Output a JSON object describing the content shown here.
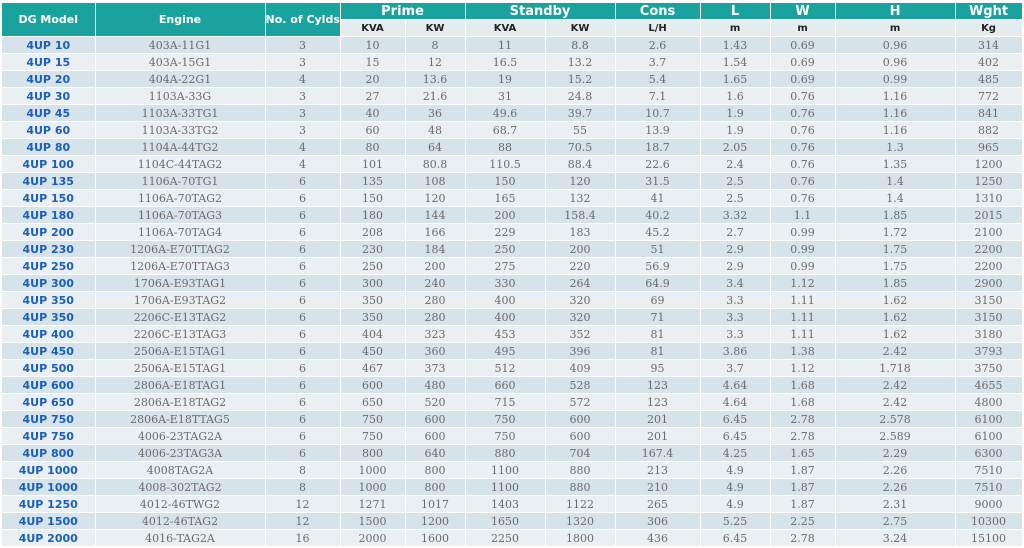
{
  "header": {
    "columns": [
      "DG Model",
      "Engine",
      "No. of Cylds",
      "Prime",
      "Standby",
      "Cons",
      "L",
      "W",
      "H",
      "Wght"
    ],
    "units": [
      "KVA",
      "KW",
      "KVA",
      "KW",
      "L/H",
      "m",
      "m",
      "m",
      "Kg"
    ]
  },
  "table": {
    "rows": [
      [
        "4UP 10",
        "403A-11G1",
        "3",
        "10",
        "8",
        "11",
        "8.8",
        "2.6",
        "1.43",
        "0.69",
        "0.96",
        "314"
      ],
      [
        "4UP 15",
        "403A-15G1",
        "3",
        "15",
        "12",
        "16.5",
        "13.2",
        "3.7",
        "1.54",
        "0.69",
        "0.96",
        "402"
      ],
      [
        "4UP 20",
        "404A-22G1",
        "4",
        "20",
        "13.6",
        "19",
        "15.2",
        "5.4",
        "1.65",
        "0.69",
        "0.99",
        "485"
      ],
      [
        "4UP 30",
        "1103A-33G",
        "3",
        "27",
        "21.6",
        "31",
        "24.8",
        "7.1",
        "1.6",
        "0.76",
        "1.16",
        "772"
      ],
      [
        "4UP 45",
        "1103A-33TG1",
        "3",
        "40",
        "36",
        "49.6",
        "39.7",
        "10.7",
        "1.9",
        "0.76",
        "1.16",
        "841"
      ],
      [
        "4UP 60",
        "1103A-33TG2",
        "3",
        "60",
        "48",
        "68.7",
        "55",
        "13.9",
        "1.9",
        "0.76",
        "1.16",
        "882"
      ],
      [
        "4UP 80",
        "1104A-44TG2",
        "4",
        "80",
        "64",
        "88",
        "70.5",
        "18.7",
        "2.05",
        "0.76",
        "1.3",
        "965"
      ],
      [
        "4UP 100",
        "1104C-44TAG2",
        "4",
        "101",
        "80.8",
        "110.5",
        "88.4",
        "22.6",
        "2.4",
        "0.76",
        "1.35",
        "1200"
      ],
      [
        "4UP 135",
        "1106A-70TG1",
        "6",
        "135",
        "108",
        "150",
        "120",
        "31.5",
        "2.5",
        "0.76",
        "1.4",
        "1250"
      ],
      [
        "4UP 150",
        "1106A-70TAG2",
        "6",
        "150",
        "120",
        "165",
        "132",
        "41",
        "2.5",
        "0.76",
        "1.4",
        "1310"
      ],
      [
        "4UP 180",
        "1106A-70TAG3",
        "6",
        "180",
        "144",
        "200",
        "158.4",
        "40.2",
        "3.32",
        "1.1",
        "1.85",
        "2015"
      ],
      [
        "4UP 200",
        "1106A-70TAG4",
        "6",
        "208",
        "166",
        "229",
        "183",
        "45.2",
        "2.7",
        "0.99",
        "1.72",
        "2100"
      ],
      [
        "4UP 230",
        "1206A-E70TTAG2",
        "6",
        "230",
        "184",
        "250",
        "200",
        "51",
        "2.9",
        "0.99",
        "1.75",
        "2200"
      ],
      [
        "4UP 250",
        "1206A-E70TTAG3",
        "6",
        "250",
        "200",
        "275",
        "220",
        "56.9",
        "2.9",
        "0.99",
        "1.75",
        "2200"
      ],
      [
        "4UP 300",
        "1706A-E93TAG1",
        "6",
        "300",
        "240",
        "330",
        "264",
        "64.9",
        "3.4",
        "1.12",
        "1.85",
        "2900"
      ],
      [
        "4UP 350",
        "1706A-E93TAG2",
        "6",
        "350",
        "280",
        "400",
        "320",
        "69",
        "3.3",
        "1.11",
        "1.62",
        "3150"
      ],
      [
        "4UP 350",
        "2206C-E13TAG2",
        "6",
        "350",
        "280",
        "400",
        "320",
        "71",
        "3.3",
        "1.11",
        "1.62",
        "3150"
      ],
      [
        "4UP 400",
        "2206C-E13TAG3",
        "6",
        "404",
        "323",
        "453",
        "352",
        "81",
        "3.3",
        "1.11",
        "1.62",
        "3180"
      ],
      [
        "4UP 450",
        "2506A-E15TAG1",
        "6",
        "450",
        "360",
        "495",
        "396",
        "81",
        "3.86",
        "1.38",
        "2.42",
        "3793"
      ],
      [
        "4UP 500",
        "2506A-E15TAG1",
        "6",
        "467",
        "373",
        "512",
        "409",
        "95",
        "3.7",
        "1.12",
        "1.718",
        "3750"
      ],
      [
        "4UP 600",
        "2806A-E18TAG1",
        "6",
        "600",
        "480",
        "660",
        "528",
        "123",
        "4.64",
        "1.68",
        "2.42",
        "4655"
      ],
      [
        "4UP 650",
        "2806A-E18TAG2",
        "6",
        "650",
        "520",
        "715",
        "572",
        "123",
        "4.64",
        "1.68",
        "2.42",
        "4800"
      ],
      [
        "4UP 750",
        "2806A-E18TTAG5",
        "6",
        "750",
        "600",
        "750",
        "600",
        "201",
        "6.45",
        "2.78",
        "2.578",
        "6100"
      ],
      [
        "4UP 750",
        "4006-23TAG2A",
        "6",
        "750",
        "600",
        "750",
        "600",
        "201",
        "6.45",
        "2.78",
        "2.589",
        "6100"
      ],
      [
        "4UP 800",
        "4006-23TAG3A",
        "6",
        "800",
        "640",
        "880",
        "704",
        "167.4",
        "4.25",
        "1.65",
        "2.29",
        "6300"
      ],
      [
        "4UP 1000",
        "4008TAG2A",
        "8",
        "1000",
        "800",
        "1100",
        "880",
        "213",
        "4.9",
        "1.87",
        "2.26",
        "7510"
      ],
      [
        "4UP 1000",
        "4008-302TAG2",
        "8",
        "1000",
        "800",
        "1100",
        "880",
        "210",
        "4.9",
        "1.87",
        "2.26",
        "7510"
      ],
      [
        "4UP 1250",
        "4012-46TWG2",
        "12",
        "1271",
        "1017",
        "1403",
        "1122",
        "265",
        "4.9",
        "1.87",
        "2.31",
        "9000"
      ],
      [
        "4UP 1500",
        "4012-46TAG2",
        "12",
        "1500",
        "1200",
        "1650",
        "1320",
        "306",
        "5.25",
        "2.25",
        "2.75",
        "10300"
      ],
      [
        "4UP 2000",
        "4016-TAG2A",
        "16",
        "2000",
        "1600",
        "2250",
        "1800",
        "436",
        "6.45",
        "2.78",
        "3.24",
        "15100"
      ]
    ]
  }
}
